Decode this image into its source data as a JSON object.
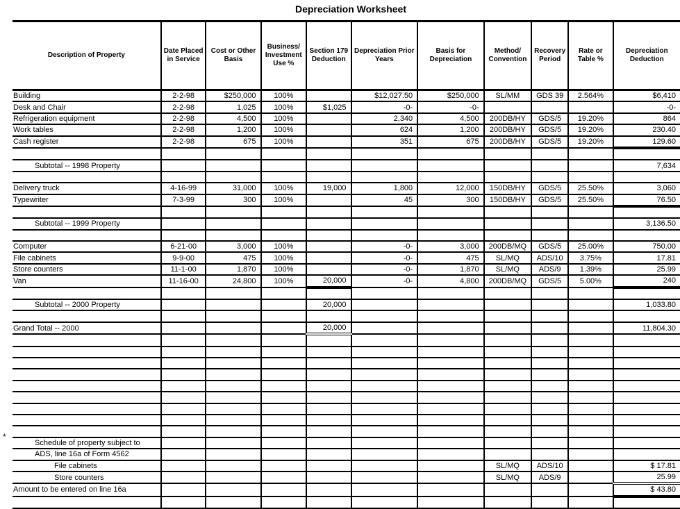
{
  "title": "Depreciation Worksheet",
  "headers": [
    "Description of Property",
    "Date Placed in Service",
    "Cost or Other Basis",
    "Business/ Investment Use %",
    "Section 179 Deduction",
    "Depreciation Prior Years",
    "Basis for Depreciation",
    "Method/ Convention",
    "Recovery Period",
    "Rate or Table %",
    "Depreciation Deduction"
  ],
  "footnote_marker": "*",
  "rows": [
    {
      "cells": [
        "Building",
        "2-2-98",
        "$250,000",
        "100%",
        "",
        "$12,027.50",
        "$250,000",
        "SL/MM",
        "GDS 39",
        "2.564%",
        "$6,410"
      ]
    },
    {
      "cells": [
        "Desk and Chair",
        "2-2-98",
        "1,025",
        "100%",
        "$1,025",
        "-0-",
        "-0-",
        "",
        "",
        "",
        "-0-"
      ]
    },
    {
      "cells": [
        "Refrigeration equipment",
        "2-2-98",
        "4,500",
        "100%",
        "",
        "2,340",
        "4,500",
        "200DB/HY",
        "GDS/5",
        "19.20%",
        "864"
      ]
    },
    {
      "cells": [
        "Work tables",
        "2-2-98",
        "1,200",
        "100%",
        "",
        "624",
        "1,200",
        "200DB/HY",
        "GDS/5",
        "19.20%",
        "230.40"
      ]
    },
    {
      "cells": [
        "Cash register",
        "2-2-98",
        "675",
        "100%",
        "",
        "351",
        "675",
        "200DB/HY",
        "GDS/5",
        "19.20%",
        "129.60"
      ]
    },
    {
      "cells": [
        "",
        "",
        "",
        "",
        "",
        "",
        "",
        "",
        "",
        "",
        ""
      ]
    },
    {
      "cells": [
        "Subtotal -- 1998 Property",
        "",
        "",
        "",
        "",
        "",
        "",
        "",
        "",
        "",
        "7,634"
      ]
    },
    {
      "cells": [
        "",
        "",
        "",
        "",
        "",
        "",
        "",
        "",
        "",
        "",
        ""
      ]
    },
    {
      "cells": [
        "Delivery truck",
        "4-16-99",
        "31,000",
        "100%",
        "19,000",
        "1,800",
        "12,000",
        "150DB/HY",
        "GDS/5",
        "25.50%",
        "3,060"
      ]
    },
    {
      "cells": [
        "Typewriter",
        "7-3-99",
        "300",
        "100%",
        "",
        "45",
        "300",
        "150DB/HY",
        "GDS/5",
        "25.50%",
        "76.50"
      ]
    },
    {
      "cells": [
        "",
        "",
        "",
        "",
        "",
        "",
        "",
        "",
        "",
        "",
        ""
      ]
    },
    {
      "cells": [
        "Subtotal -- 1999 Property",
        "",
        "",
        "",
        "",
        "",
        "",
        "",
        "",
        "",
        "3,136.50"
      ]
    },
    {
      "cells": [
        "",
        "",
        "",
        "",
        "",
        "",
        "",
        "",
        "",
        "",
        ""
      ]
    },
    {
      "cells": [
        "Computer",
        "6-21-00",
        "3,000",
        "100%",
        "",
        "-0-",
        "3,000",
        "200DB/MQ",
        "GDS/5",
        "25.00%",
        "750.00"
      ]
    },
    {
      "cells": [
        "File cabinets",
        "9-9-00",
        "475",
        "100%",
        "",
        "-0-",
        "475",
        "SL/MQ",
        "ADS/10",
        "3.75%",
        "17.81"
      ]
    },
    {
      "cells": [
        "Store counters",
        "11-1-00",
        "1,870",
        "100%",
        "",
        "-0-",
        "1,870",
        "SL/MQ",
        "ADS/9",
        "1.39%",
        "25.99"
      ]
    },
    {
      "cells": [
        "Van",
        "11-16-00",
        "24,800",
        "100%",
        "20,000",
        "-0-",
        "4,800",
        "200DB/MQ",
        "GDS/5",
        "5.00%",
        "240"
      ]
    },
    {
      "cells": [
        "",
        "",
        "",
        "",
        "",
        "",
        "",
        "",
        "",
        "",
        ""
      ]
    },
    {
      "cells": [
        "Subtotal -- 2000 Property",
        "",
        "",
        "",
        "20,000",
        "",
        "",
        "",
        "",
        "",
        "1,033.80"
      ]
    },
    {
      "cells": [
        "",
        "",
        "",
        "",
        "",
        "",
        "",
        "",
        "",
        "",
        ""
      ]
    },
    {
      "cells": [
        "Grand Total -- 2000",
        "",
        "",
        "",
        "20,000",
        "",
        "",
        "",
        "",
        "",
        "11,804.30"
      ]
    },
    {
      "cells": [
        "",
        "",
        "",
        "",
        "",
        "",
        "",
        "",
        "",
        "",
        ""
      ]
    },
    {
      "cells": [
        "",
        "",
        "",
        "",
        "",
        "",
        "",
        "",
        "",
        "",
        ""
      ]
    },
    {
      "cells": [
        "",
        "",
        "",
        "",
        "",
        "",
        "",
        "",
        "",
        "",
        ""
      ]
    },
    {
      "cells": [
        "",
        "",
        "",
        "",
        "",
        "",
        "",
        "",
        "",
        "",
        ""
      ]
    },
    {
      "cells": [
        "",
        "",
        "",
        "",
        "",
        "",
        "",
        "",
        "",
        "",
        ""
      ]
    },
    {
      "cells": [
        "",
        "",
        "",
        "",
        "",
        "",
        "",
        "",
        "",
        "",
        ""
      ]
    },
    {
      "cells": [
        "",
        "",
        "",
        "",
        "",
        "",
        "",
        "",
        "",
        "",
        ""
      ]
    },
    {
      "cells": [
        "",
        "",
        "",
        "",
        "",
        "",
        "",
        "",
        "",
        "",
        ""
      ]
    },
    {
      "cells": [
        "",
        "",
        "",
        "",
        "",
        "",
        "",
        "",
        "",
        "",
        ""
      ]
    },
    {
      "cells": [
        "Schedule of property subject to",
        "",
        "",
        "",
        "",
        "",
        "",
        "",
        "",
        "",
        ""
      ]
    },
    {
      "cells": [
        "ADS, line 16a of Form 4562",
        "",
        "",
        "",
        "",
        "",
        "",
        "",
        "",
        "",
        ""
      ]
    },
    {
      "cells": [
        "File cabinets",
        "",
        "",
        "",
        "",
        "",
        "",
        "SL/MQ",
        "ADS/10",
        "",
        "$ 17.81"
      ]
    },
    {
      "cells": [
        "Store counters",
        "",
        "",
        "",
        "",
        "",
        "",
        "SL/MQ",
        "ADS/9",
        "",
        "25.99"
      ]
    },
    {
      "cells": [
        "Amount to be entered on line 16a",
        "",
        "",
        "",
        "",
        "",
        "",
        "",
        "",
        "",
        "$ 43.80"
      ]
    },
    {
      "cells": [
        "",
        "",
        "",
        "",
        "",
        "",
        "",
        "",
        "",
        "",
        ""
      ]
    }
  ]
}
